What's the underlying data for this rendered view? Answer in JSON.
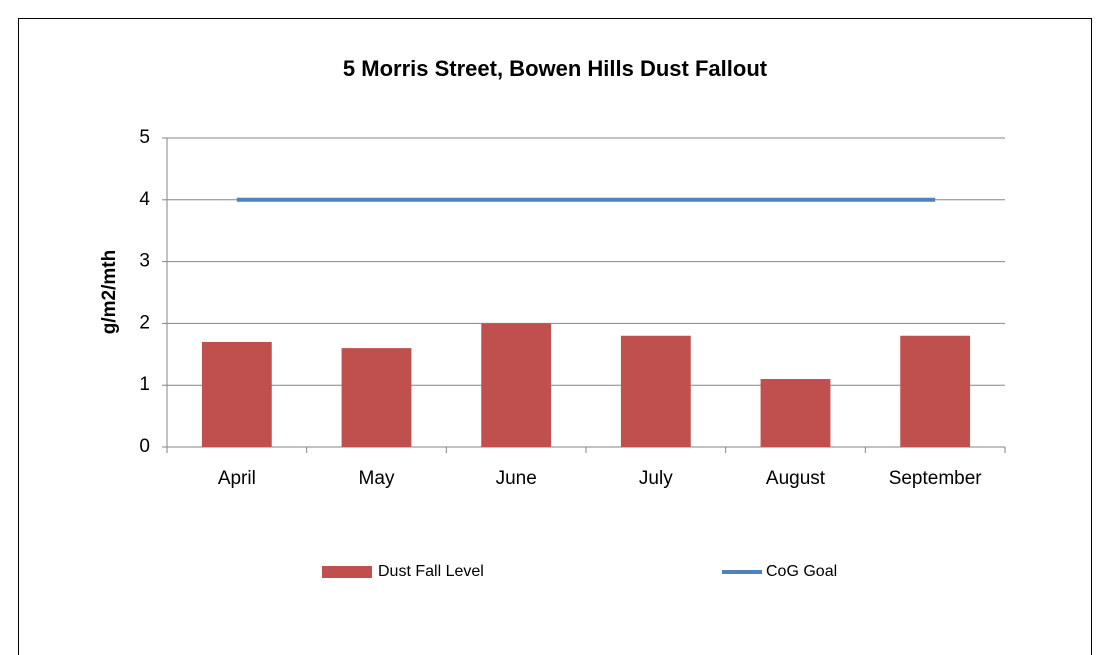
{
  "chart_data": {
    "type": "bar",
    "title": "5 Morris Street, Bowen Hills Dust Fallout",
    "y_label": "g/m2/mth",
    "categories": [
      "April",
      "May",
      "June",
      "July",
      "August",
      "September"
    ],
    "series": [
      {
        "name": "Dust Fall Level",
        "color": "#c0504d",
        "type": "bar",
        "values": [
          1.7,
          1.6,
          2.0,
          1.8,
          1.1,
          1.8
        ]
      },
      {
        "name": "CoG Goal",
        "color": "#4f81bd",
        "type": "line",
        "values": [
          4,
          4,
          4,
          4,
          4,
          4
        ]
      }
    ],
    "ylim": [
      0,
      5
    ],
    "yticks": [
      0,
      1,
      2,
      3,
      4,
      5
    ],
    "grid": true,
    "legend": "bottom"
  }
}
